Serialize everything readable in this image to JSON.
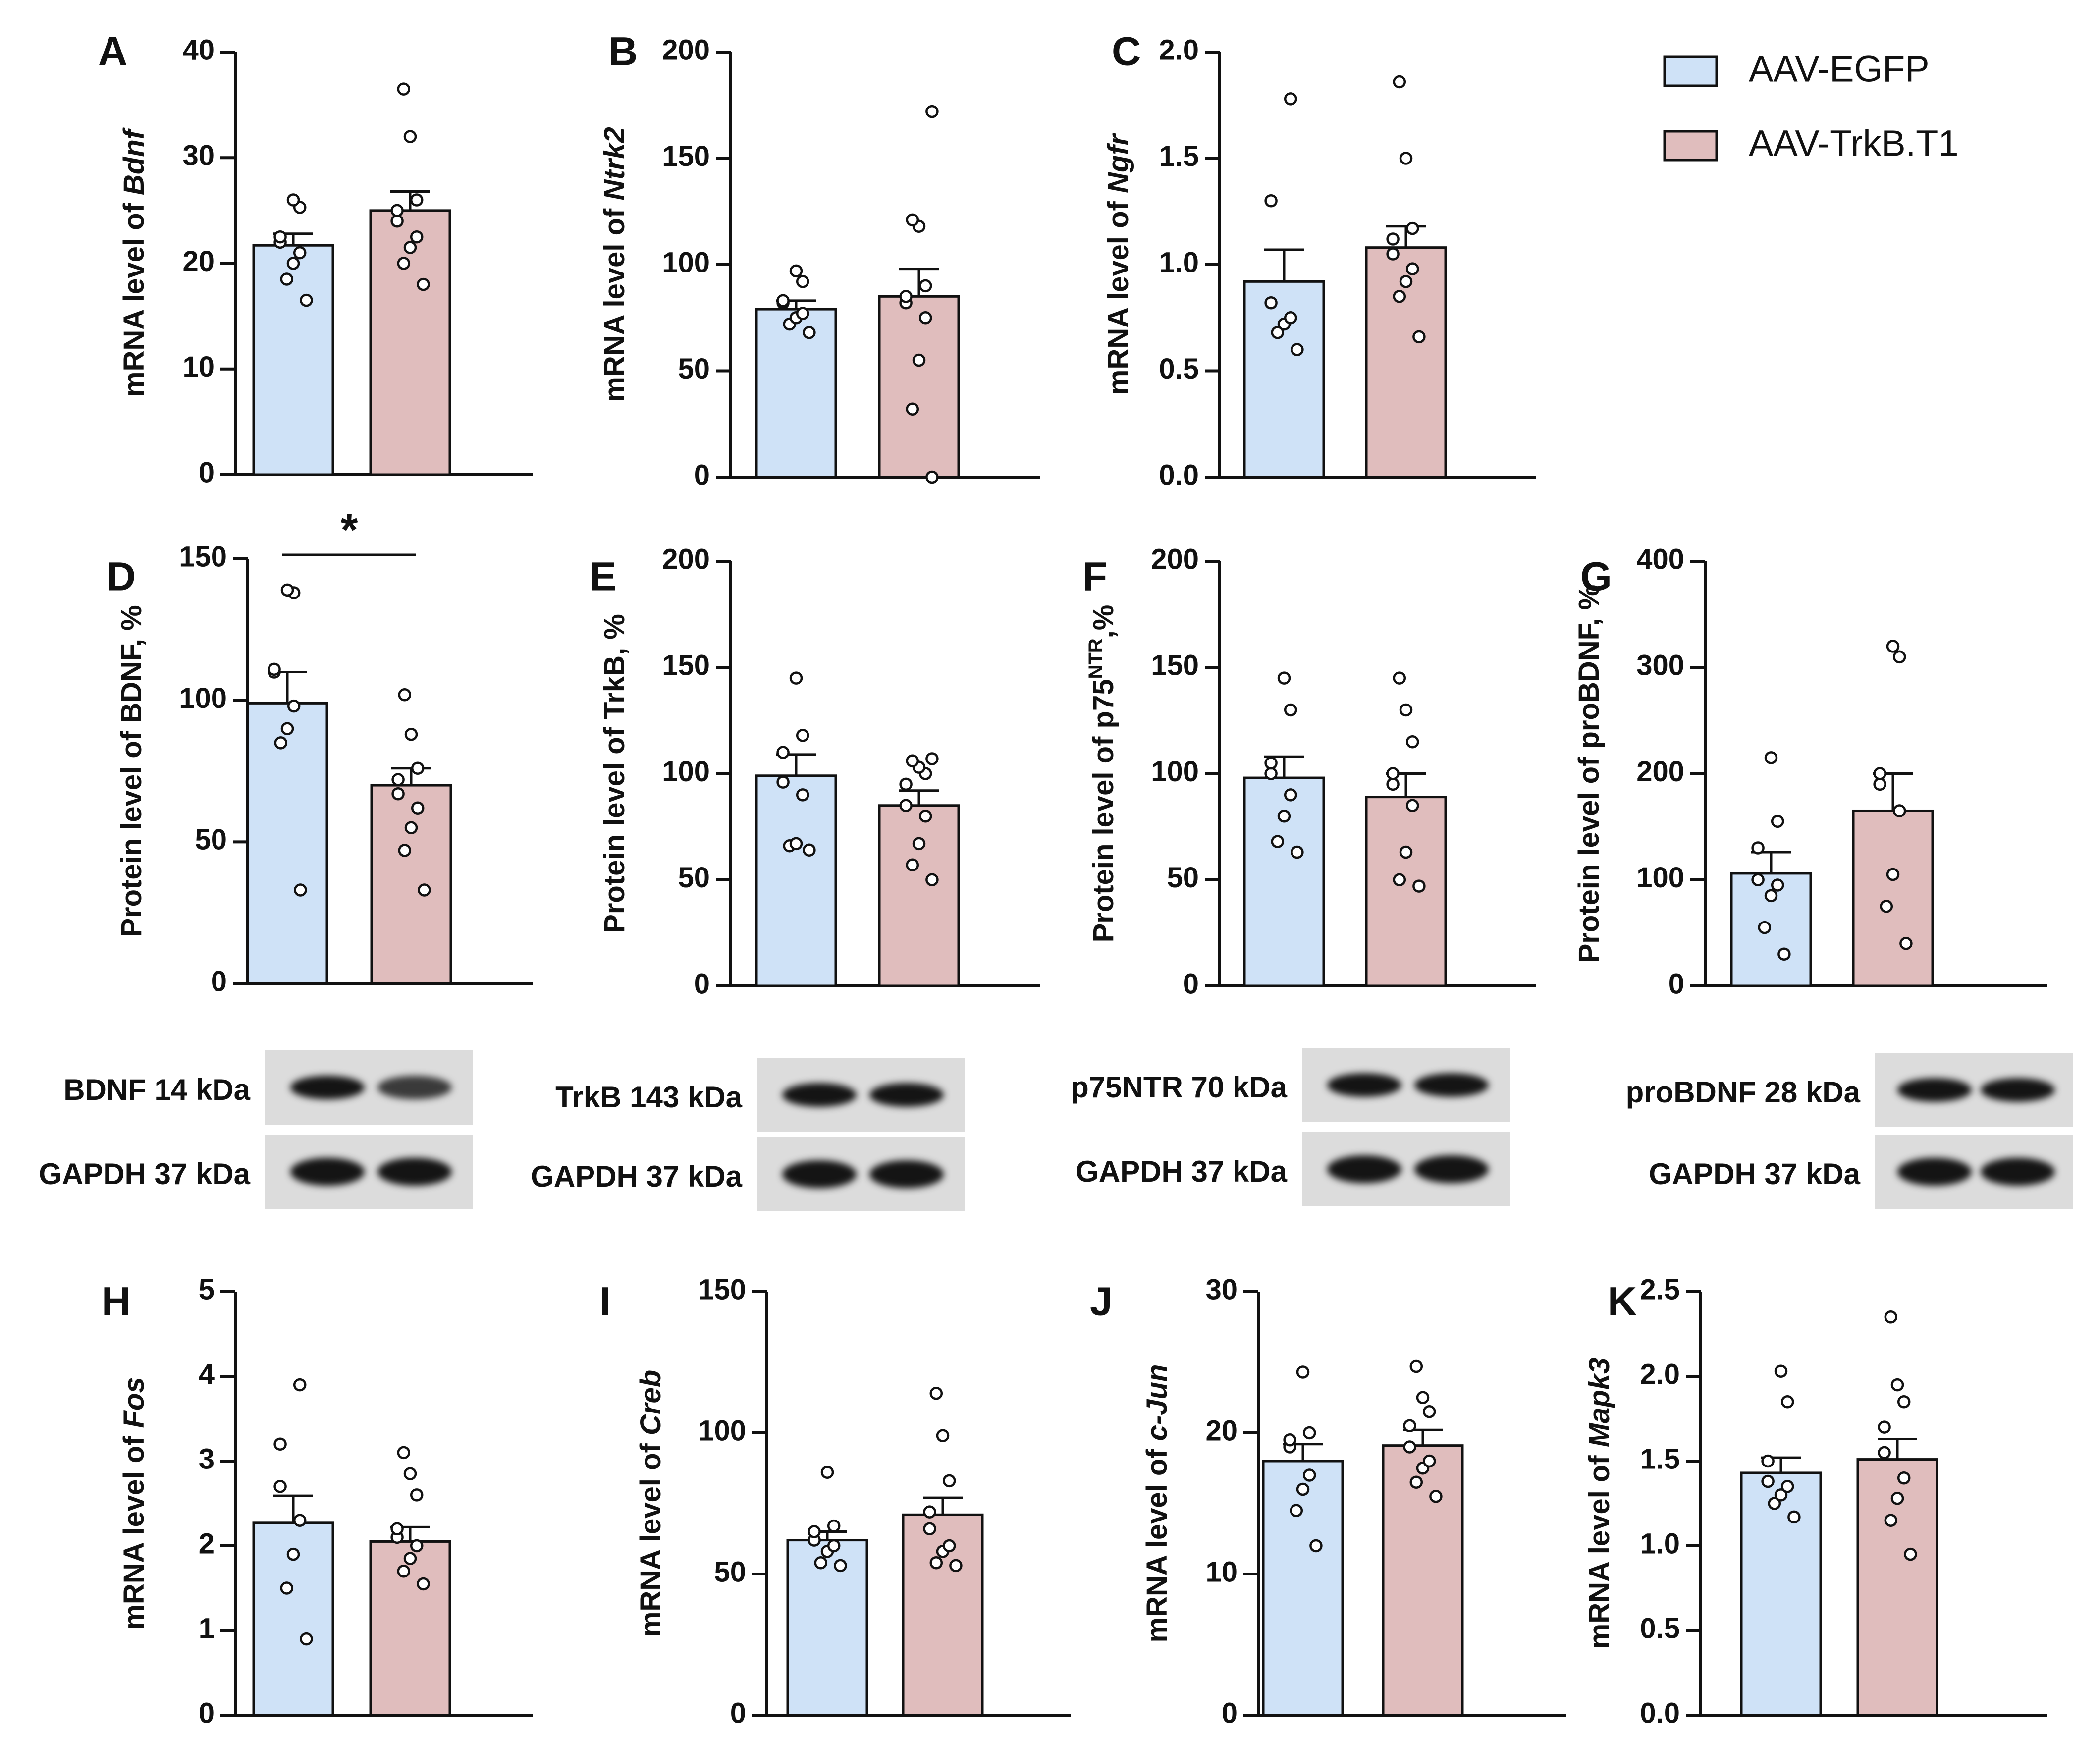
{
  "legend": {
    "items": [
      {
        "label": "AAV-EGFP",
        "color": "#cfe2f7"
      },
      {
        "label": "AAV-TrkB.T1",
        "color": "#e0bdbd"
      }
    ]
  },
  "colors": {
    "egfp": "#cfe2f7",
    "trkb": "#e0bdbd",
    "stroke": "#111111"
  },
  "chart_data": [
    {
      "id": "A",
      "type": "bar",
      "ylabel_pre": "mRNA level of ",
      "ylabel_it": "Bdnf",
      "ylim": [
        0,
        40
      ],
      "ticks": [
        0,
        10,
        20,
        30,
        40
      ],
      "tick_labels": [
        "0",
        "10",
        "20",
        "30",
        "40"
      ],
      "series": [
        {
          "name": "AAV-EGFP",
          "mean": 21.7,
          "sem": 1.1,
          "points": [
            16.5,
            18.5,
            20,
            21,
            22,
            22.5,
            25.3,
            26
          ]
        },
        {
          "name": "AAV-TrkB.T1",
          "mean": 25.0,
          "sem": 1.8,
          "points": [
            18,
            20,
            21.5,
            22.5,
            24,
            25,
            26,
            32,
            36.5
          ]
        }
      ]
    },
    {
      "id": "B",
      "type": "bar",
      "ylabel_pre": "mRNA level of ",
      "ylabel_it": "Ntrk2",
      "ylim": [
        0,
        200
      ],
      "ticks": [
        0,
        50,
        100,
        150,
        200
      ],
      "tick_labels": [
        "0",
        "50",
        "100",
        "150",
        "200"
      ],
      "series": [
        {
          "name": "AAV-EGFP",
          "mean": 79,
          "sem": 4,
          "points": [
            68,
            72,
            75,
            77,
            82,
            83,
            92,
            97
          ]
        },
        {
          "name": "AAV-TrkB.T1",
          "mean": 85,
          "sem": 13,
          "points": [
            0,
            32,
            55,
            75,
            82,
            85,
            90,
            118,
            121,
            172
          ]
        }
      ]
    },
    {
      "id": "C",
      "type": "bar",
      "ylabel_pre": "mRNA level of ",
      "ylabel_it": "Ngfr",
      "ylim": [
        0,
        2.0
      ],
      "ticks": [
        0,
        0.5,
        1.0,
        1.5,
        2.0
      ],
      "tick_labels": [
        "0.0",
        "0.5",
        "1.0",
        "1.5",
        "2.0"
      ],
      "series": [
        {
          "name": "AAV-EGFP",
          "mean": 0.92,
          "sem": 0.15,
          "points": [
            0.6,
            0.68,
            0.72,
            0.75,
            0.82,
            1.3,
            1.78
          ]
        },
        {
          "name": "AAV-TrkB.T1",
          "mean": 1.08,
          "sem": 0.1,
          "points": [
            0.66,
            0.85,
            0.92,
            0.98,
            1.05,
            1.12,
            1.17,
            1.5,
            1.86
          ]
        }
      ]
    },
    {
      "id": "D",
      "type": "bar",
      "ylabel_pre": "Protein level of BDNF, %",
      "ylabel_it": "",
      "ylim": [
        0,
        150
      ],
      "ticks": [
        0,
        50,
        100,
        150
      ],
      "tick_labels": [
        "0",
        "50",
        "100",
        "150"
      ],
      "significance": "*",
      "series": [
        {
          "name": "AAV-EGFP",
          "mean": 99,
          "sem": 11,
          "points": [
            33,
            85,
            90,
            98,
            110,
            111,
            138,
            139
          ]
        },
        {
          "name": "AAV-TrkB.T1",
          "mean": 70,
          "sem": 6,
          "points": [
            33,
            47,
            55,
            62,
            67,
            72,
            76,
            88,
            102
          ]
        }
      ]
    },
    {
      "id": "E",
      "type": "bar",
      "ylabel_pre": "Protein level of TrkB, %",
      "ylabel_it": "",
      "ylim": [
        0,
        200
      ],
      "ticks": [
        0,
        50,
        100,
        150,
        200
      ],
      "tick_labels": [
        "0",
        "50",
        "100",
        "150",
        "200"
      ],
      "series": [
        {
          "name": "AAV-EGFP",
          "mean": 99,
          "sem": 10,
          "points": [
            64,
            66,
            67,
            90,
            96,
            110,
            118,
            145
          ]
        },
        {
          "name": "AAV-TrkB.T1",
          "mean": 85,
          "sem": 7,
          "points": [
            50,
            57,
            67,
            80,
            85,
            95,
            100,
            103,
            106,
            107
          ]
        }
      ]
    },
    {
      "id": "F",
      "type": "bar",
      "ylabel_pre": "Protein level of p75",
      "ylabel_sup": "NTR",
      "ylabel_post": ",%",
      "ylabel_it": "",
      "ylim": [
        0,
        200
      ],
      "ticks": [
        0,
        50,
        100,
        150,
        200
      ],
      "tick_labels": [
        "0",
        "50",
        "100",
        "150",
        "200"
      ],
      "series": [
        {
          "name": "AAV-EGFP",
          "mean": 98,
          "sem": 10,
          "points": [
            63,
            68,
            80,
            90,
            100,
            105,
            130,
            145
          ]
        },
        {
          "name": "AAV-TrkB.T1",
          "mean": 89,
          "sem": 11,
          "points": [
            47,
            50,
            63,
            85,
            95,
            100,
            115,
            130,
            145
          ]
        }
      ]
    },
    {
      "id": "G",
      "type": "bar",
      "ylabel_pre": "Protein level of proBDNF, %",
      "ylabel_it": "",
      "ylim": [
        0,
        400
      ],
      "ticks": [
        0,
        100,
        200,
        300,
        400
      ],
      "tick_labels": [
        "0",
        "100",
        "200",
        "300",
        "400"
      ],
      "series": [
        {
          "name": "AAV-EGFP",
          "mean": 106,
          "sem": 20,
          "points": [
            30,
            55,
            85,
            95,
            100,
            130,
            155,
            215
          ]
        },
        {
          "name": "AAV-TrkB.T1",
          "mean": 165,
          "sem": 35,
          "points": [
            40,
            75,
            105,
            165,
            190,
            200,
            310,
            320
          ]
        }
      ]
    },
    {
      "id": "H",
      "type": "bar",
      "ylabel_pre": "mRNA level of ",
      "ylabel_it": "Fos",
      "ylim": [
        0,
        5
      ],
      "ticks": [
        0,
        1,
        2,
        3,
        4,
        5
      ],
      "tick_labels": [
        "0",
        "1",
        "2",
        "3",
        "4",
        "5"
      ],
      "series": [
        {
          "name": "AAV-EGFP",
          "mean": 2.27,
          "sem": 0.32,
          "points": [
            0.9,
            1.5,
            1.9,
            2.3,
            2.7,
            3.2,
            3.9
          ]
        },
        {
          "name": "AAV-TrkB.T1",
          "mean": 2.05,
          "sem": 0.17,
          "points": [
            1.55,
            1.7,
            1.85,
            2.0,
            2.1,
            2.2,
            2.6,
            2.85,
            3.1
          ]
        }
      ]
    },
    {
      "id": "I",
      "type": "bar",
      "ylabel_pre": "mRNA level of ",
      "ylabel_it": "Creb",
      "ylim": [
        0,
        150
      ],
      "ticks": [
        0,
        50,
        100,
        150
      ],
      "tick_labels": [
        "0",
        "50",
        "100",
        "150"
      ],
      "series": [
        {
          "name": "AAV-EGFP",
          "mean": 62,
          "sem": 3,
          "points": [
            53,
            54,
            58,
            60,
            62,
            65,
            67,
            86
          ]
        },
        {
          "name": "AAV-TrkB.T1",
          "mean": 71,
          "sem": 6,
          "points": [
            53,
            54,
            58,
            60,
            66,
            72,
            83,
            99,
            114
          ]
        }
      ]
    },
    {
      "id": "J",
      "type": "bar",
      "ylabel_pre": "mRNA level of ",
      "ylabel_it": "c-Jun",
      "ylim": [
        0,
        30
      ],
      "ticks": [
        0,
        10,
        20,
        30
      ],
      "tick_labels": [
        "0",
        "10",
        "20",
        "30"
      ],
      "series": [
        {
          "name": "AAV-EGFP",
          "mean": 18,
          "sem": 1.2,
          "points": [
            12,
            14.5,
            16,
            17,
            19,
            19.5,
            20,
            24.3
          ]
        },
        {
          "name": "AAV-TrkB.T1",
          "mean": 19.1,
          "sem": 1.1,
          "points": [
            15.5,
            16.5,
            17.5,
            18,
            19,
            20.5,
            21.5,
            22.5,
            24.7
          ]
        }
      ]
    },
    {
      "id": "K",
      "type": "bar",
      "ylabel_pre": "mRNA level of ",
      "ylabel_it": "Mapk3",
      "ylim": [
        0,
        2.5
      ],
      "ticks": [
        0,
        0.5,
        1.0,
        1.5,
        2.0,
        2.5
      ],
      "tick_labels": [
        "0.0",
        "0.5",
        "1.0",
        "1.5",
        "2.0",
        "2.5"
      ],
      "series": [
        {
          "name": "AAV-EGFP",
          "mean": 1.43,
          "sem": 0.09,
          "points": [
            1.17,
            1.25,
            1.3,
            1.35,
            1.38,
            1.5,
            1.85,
            2.03
          ]
        },
        {
          "name": "AAV-TrkB.T1",
          "mean": 1.51,
          "sem": 0.12,
          "points": [
            0.95,
            1.15,
            1.28,
            1.4,
            1.55,
            1.7,
            1.85,
            1.95,
            2.35
          ]
        }
      ]
    }
  ],
  "blots": [
    {
      "id": "bdnf",
      "target_label": "BDNF 14 kDa",
      "control_label": "GAPDH 37 kDa"
    },
    {
      "id": "trkb",
      "target_label": "TrkB 143 kDa",
      "control_label": "GAPDH 37 kDa"
    },
    {
      "id": "p75",
      "target_label": "p75NTR 70 kDa",
      "control_label": "GAPDH 37 kDa"
    },
    {
      "id": "probdnf",
      "target_label": "proBDNF 28 kDa",
      "control_label": "GAPDH 37 kDa"
    }
  ]
}
